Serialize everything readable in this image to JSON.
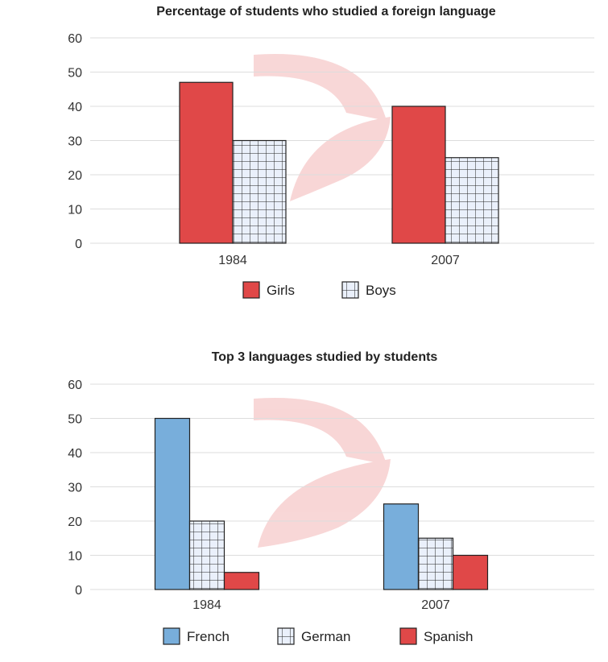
{
  "chart_data": [
    {
      "type": "bar",
      "title": "Percentage of students who studied a foreign language",
      "xlabel": "",
      "ylabel": "",
      "ylim": [
        0,
        60
      ],
      "yticks": [
        0,
        10,
        20,
        30,
        40,
        50,
        60
      ],
      "grid": true,
      "legend_position": "bottom-center",
      "categories": [
        "1984",
        "2007"
      ],
      "series": [
        {
          "name": "Girls",
          "values": [
            47,
            40
          ],
          "color": "#e04848",
          "pattern": "solid"
        },
        {
          "name": "Boys",
          "values": [
            30,
            25
          ],
          "color": "#eaf0fb",
          "pattern": "grid"
        }
      ]
    },
    {
      "type": "bar",
      "title": "Top 3 languages studied by students",
      "xlabel": "",
      "ylabel": "",
      "ylim": [
        0,
        60
      ],
      "yticks": [
        0,
        10,
        20,
        30,
        40,
        50,
        60
      ],
      "grid": true,
      "legend_position": "bottom-center",
      "categories": [
        "1984",
        "2007"
      ],
      "series": [
        {
          "name": "French",
          "values": [
            50,
            25
          ],
          "color": "#78aedb",
          "pattern": "solid"
        },
        {
          "name": "German",
          "values": [
            20,
            15
          ],
          "color": "#eaf0fb",
          "pattern": "grid"
        },
        {
          "name": "Spanish",
          "values": [
            5,
            10
          ],
          "color": "#e04848",
          "pattern": "solid"
        }
      ]
    }
  ],
  "colors": {
    "gridline": "#dddddd",
    "axis_text": "#333333",
    "bar_outline": "#222222",
    "watermark": "#f6dcdc"
  }
}
